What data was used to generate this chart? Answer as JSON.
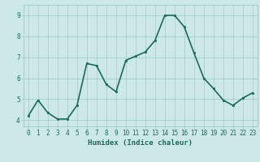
{
  "x": [
    0,
    1,
    2,
    3,
    4,
    5,
    6,
    7,
    8,
    9,
    10,
    11,
    12,
    13,
    14,
    15,
    16,
    17,
    18,
    19,
    20,
    21,
    22,
    23
  ],
  "y": [
    4.2,
    4.95,
    4.35,
    4.05,
    4.05,
    4.7,
    6.7,
    6.6,
    5.7,
    5.35,
    6.85,
    7.05,
    7.25,
    7.8,
    9.0,
    9.0,
    8.45,
    7.2,
    6.0,
    5.5,
    4.95,
    4.7,
    5.05,
    5.3
  ],
  "line_color": "#1a6b5a",
  "marker_color": "#1a6b5a",
  "bg_color": "#cce8e8",
  "grid_color": "#99cccc",
  "xlabel": "Humidex (Indice chaleur)",
  "xlim": [
    -0.5,
    23.5
  ],
  "ylim": [
    3.7,
    9.5
  ],
  "yticks": [
    4,
    5,
    6,
    7,
    8,
    9
  ],
  "xticks": [
    0,
    1,
    2,
    3,
    4,
    5,
    6,
    7,
    8,
    9,
    10,
    11,
    12,
    13,
    14,
    15,
    16,
    17,
    18,
    19,
    20,
    21,
    22,
    23
  ],
  "tick_fontsize": 5.5,
  "xlabel_fontsize": 6.5,
  "line_width": 1.2,
  "marker_size": 2.0
}
